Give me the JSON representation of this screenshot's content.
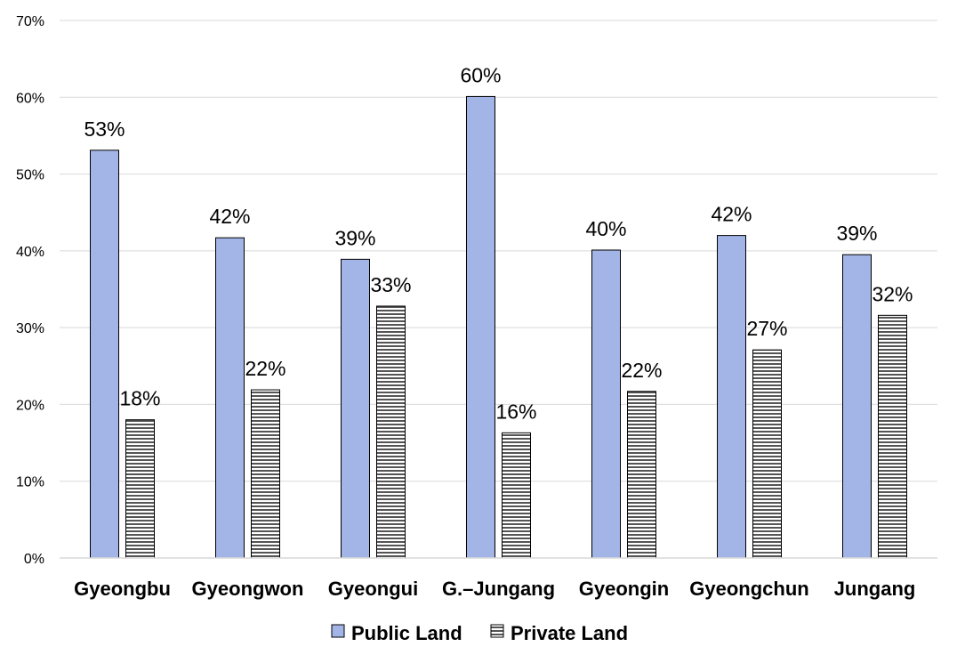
{
  "chart_data": {
    "type": "bar",
    "categories": [
      "Gyeongbu",
      "Gyeongwon",
      "Gyeongui",
      "G.–Jungang",
      "Gyeongin",
      "Gyeongchun",
      "Jungang"
    ],
    "series": [
      {
        "name": "Public Land",
        "values": [
          53.1,
          41.7,
          38.9,
          60.1,
          40.1,
          42.0,
          39.5
        ],
        "data_labels": [
          "53%",
          "42%",
          "39%",
          "60%",
          "40%",
          "42%",
          "39%"
        ],
        "fill": "#a3b4e6",
        "pattern": "solid"
      },
      {
        "name": "Private Land",
        "values": [
          18.0,
          21.9,
          32.8,
          16.3,
          21.7,
          27.1,
          31.6
        ],
        "data_labels": [
          "18%",
          "22%",
          "33%",
          "16%",
          "22%",
          "27%",
          "32%"
        ],
        "fill": "#ffffff",
        "pattern": "horizontal-stripes"
      }
    ],
    "y_ticks": [
      "0%",
      "10%",
      "20%",
      "30%",
      "40%",
      "50%",
      "60%",
      "70%"
    ],
    "ylim": [
      0,
      70
    ],
    "y_unit": "%",
    "grid": "horizontal",
    "legend": "bottom-center"
  }
}
